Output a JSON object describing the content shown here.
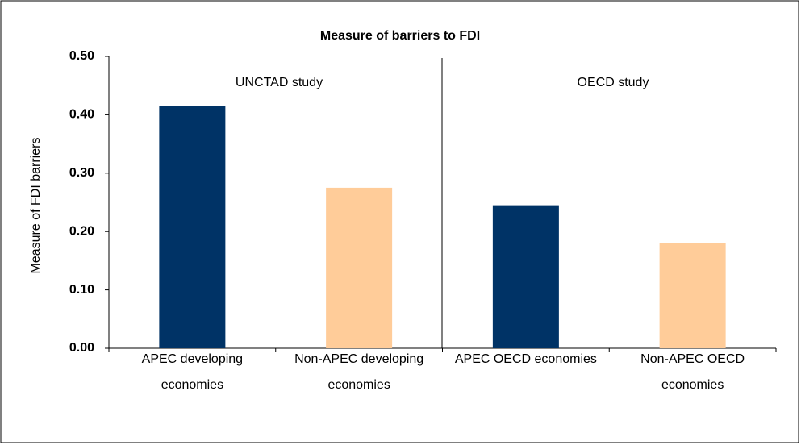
{
  "chart_data": {
    "type": "bar",
    "title": "Measure of barriers to FDI",
    "ylabel": "Measure of FDI barriers",
    "categories": [
      "APEC developing economies",
      "Non-APEC developing economies",
      "APEC OECD economies",
      "Non-APEC OECD economies"
    ],
    "values": [
      0.415,
      0.275,
      0.245,
      0.18
    ],
    "colors": [
      "#003366",
      "#ffcc99",
      "#003366",
      "#ffcc99"
    ],
    "ylim": [
      0,
      0.5
    ],
    "yticks": [
      {
        "value": 0,
        "label": "0.00"
      },
      {
        "value": 0.1,
        "label": "0.10"
      },
      {
        "value": 0.2,
        "label": "0.20"
      },
      {
        "value": 0.3,
        "label": "0.30"
      },
      {
        "value": 0.4,
        "label": "0.40"
      },
      {
        "value": 0.5,
        "label": "0.50"
      }
    ],
    "grid": false,
    "annotations": [
      "UNCTAD study",
      "OECD study"
    ]
  }
}
